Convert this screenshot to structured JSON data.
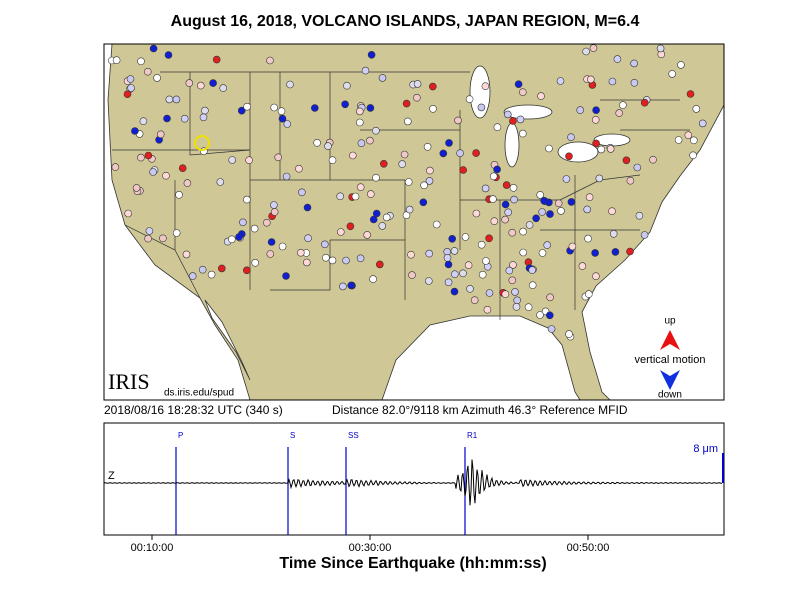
{
  "header": {
    "title": "August 16, 2018, VOLCANO ISLANDS, JAPAN REGION, M=6.4"
  },
  "map": {
    "logo": "IRIS",
    "url": "ds.iris.edu/spud"
  },
  "legend": {
    "up": "up",
    "label": "vertical motion",
    "down": "down"
  },
  "info": {
    "time": "2018/08/16 18:28:32 UTC (340 s)",
    "details": "Distance  82.0°/9118 km  Azimuth  46.3°  Reference MFID"
  },
  "seismogram": {
    "channel": "Z",
    "scale": "8 μm",
    "phases": [
      "P",
      "S",
      "SS",
      "R1"
    ],
    "time_ticks": [
      "00:10:00",
      "00:30:00",
      "00:50:00"
    ],
    "xlabel": "Time Since Earthquake (hh:mm:ss)"
  }
}
